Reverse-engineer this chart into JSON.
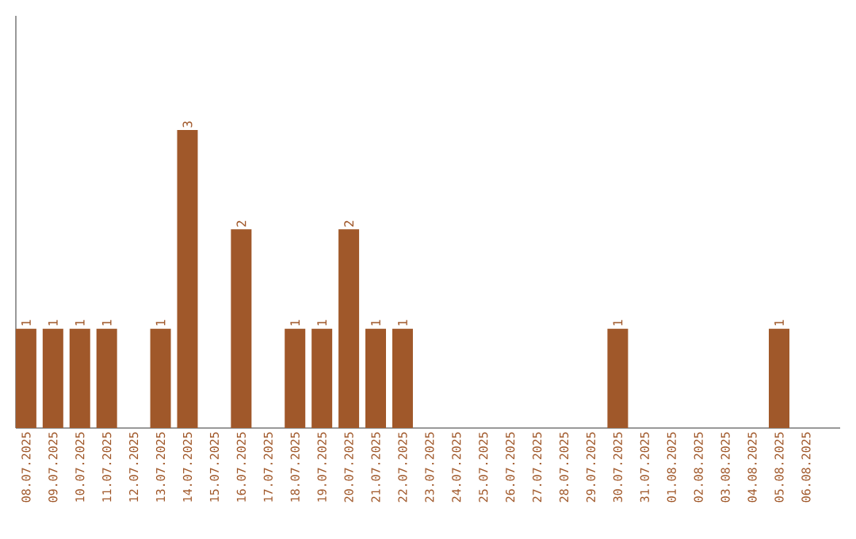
{
  "chart_data": {
    "type": "bar",
    "categories": [
      "08.07.2025",
      "09.07.2025",
      "10.07.2025",
      "11.07.2025",
      "12.07.2025",
      "13.07.2025",
      "14.07.2025",
      "15.07.2025",
      "16.07.2025",
      "17.07.2025",
      "18.07.2025",
      "19.07.2025",
      "20.07.2025",
      "21.07.2025",
      "22.07.2025",
      "23.07.2025",
      "24.07.2025",
      "25.07.2025",
      "26.07.2025",
      "27.07.2025",
      "28.07.2025",
      "29.07.2025",
      "30.07.2025",
      "31.07.2025",
      "01.08.2025",
      "02.08.2025",
      "03.08.2025",
      "04.08.2025",
      "05.08.2025",
      "06.08.2025"
    ],
    "values": [
      1,
      1,
      1,
      1,
      0,
      1,
      3,
      0,
      2,
      0,
      1,
      1,
      2,
      1,
      1,
      0,
      0,
      0,
      0,
      0,
      0,
      0,
      1,
      0,
      0,
      0,
      0,
      0,
      1,
      0
    ],
    "value_labels": [
      "1",
      "1",
      "1",
      "1",
      null,
      "1",
      "3",
      null,
      "2",
      null,
      "1",
      "1",
      "2",
      "1",
      "1",
      null,
      null,
      null,
      null,
      null,
      null,
      null,
      "1",
      null,
      null,
      null,
      null,
      null,
      "1",
      null
    ],
    "color": "#a0582a"
  }
}
